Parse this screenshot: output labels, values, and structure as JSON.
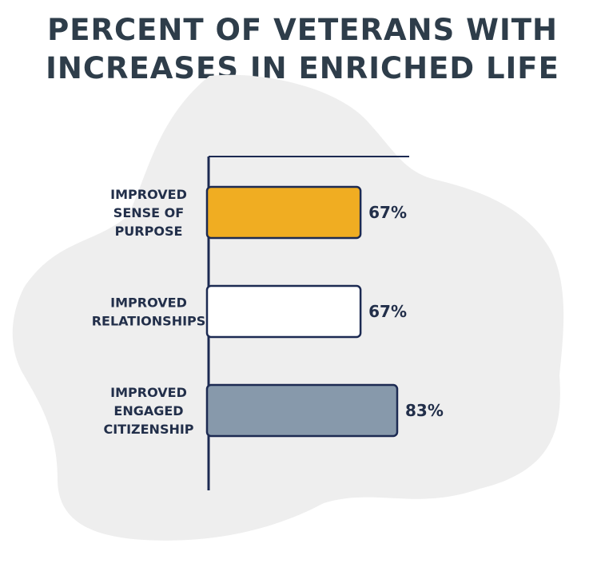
{
  "title_lines": [
    "PERCENT OF VETERANS WITH",
    "INCREASES IN ENRICHED LIFE"
  ],
  "colors": {
    "title": "#2e3d4a",
    "axis": "#1c2a52",
    "text": "#222f4a",
    "blob": "#eeeeee"
  },
  "chart_data": {
    "type": "bar",
    "orientation": "horizontal",
    "title": "PERCENT OF VETERANS WITH INCREASES IN ENRICHED LIFE",
    "categories": [
      [
        "IMPROVED",
        "SENSE OF",
        "PURPOSE"
      ],
      [
        "IMPROVED",
        "RELATIONSHIPS"
      ],
      [
        "IMPROVED",
        "ENGAGED",
        "CITIZENSHIP"
      ]
    ],
    "values": [
      67,
      67,
      83
    ],
    "value_labels": [
      "67%",
      "67%",
      "83%"
    ],
    "bar_colors": [
      "#f0ad22",
      "#ffffff",
      "#8799ab"
    ],
    "xlim": [
      0,
      100
    ],
    "grid": false,
    "legend": "none"
  }
}
